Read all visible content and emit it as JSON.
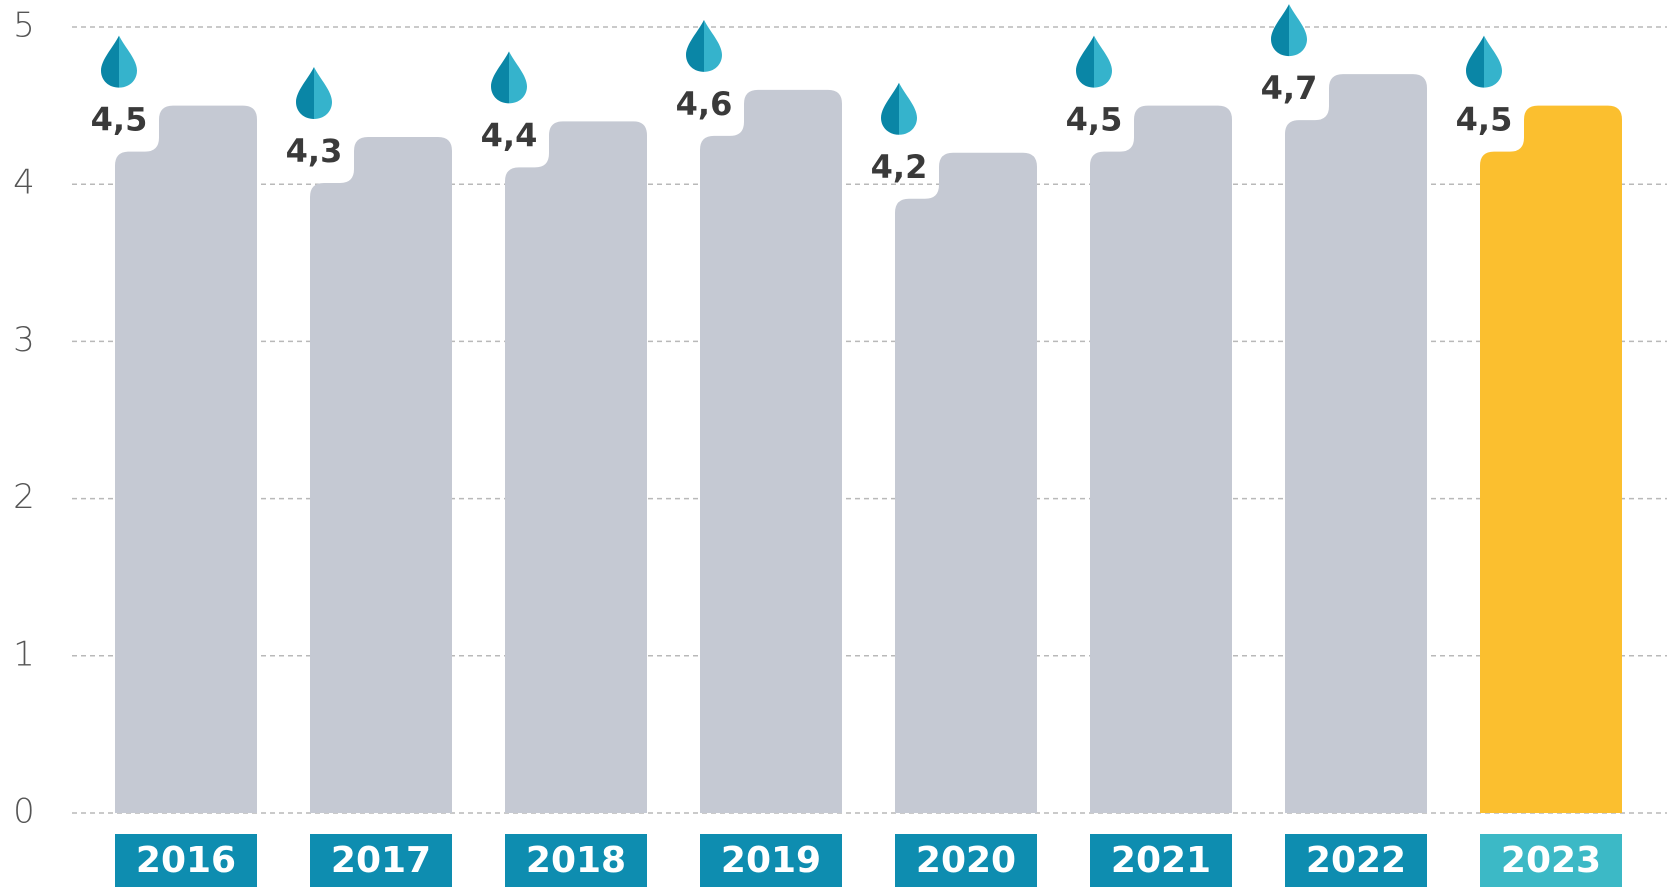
{
  "chart_data": {
    "type": "bar",
    "categories": [
      "2016",
      "2017",
      "2018",
      "2019",
      "2020",
      "2021",
      "2022",
      "2023"
    ],
    "values": [
      4.5,
      4.3,
      4.4,
      4.6,
      4.2,
      4.5,
      4.7,
      4.5
    ],
    "value_labels": [
      "4,5",
      "4,3",
      "4,4",
      "4,6",
      "4,2",
      "4,5",
      "4,7",
      "4,5"
    ],
    "colors": [
      "#c5c9d3",
      "#c5c9d3",
      "#c5c9d3",
      "#c5c9d3",
      "#c5c9d3",
      "#c5c9d3",
      "#c5c9d3",
      "#fbbf2f"
    ],
    "label_colors": [
      "#0e8db0",
      "#0e8db0",
      "#0e8db0",
      "#0e8db0",
      "#0e8db0",
      "#0e8db0",
      "#0e8db0",
      "#3cb9c6"
    ],
    "ylim": [
      0,
      5
    ],
    "yticks": [
      0,
      1,
      2,
      3,
      4,
      5
    ],
    "grid": true
  }
}
